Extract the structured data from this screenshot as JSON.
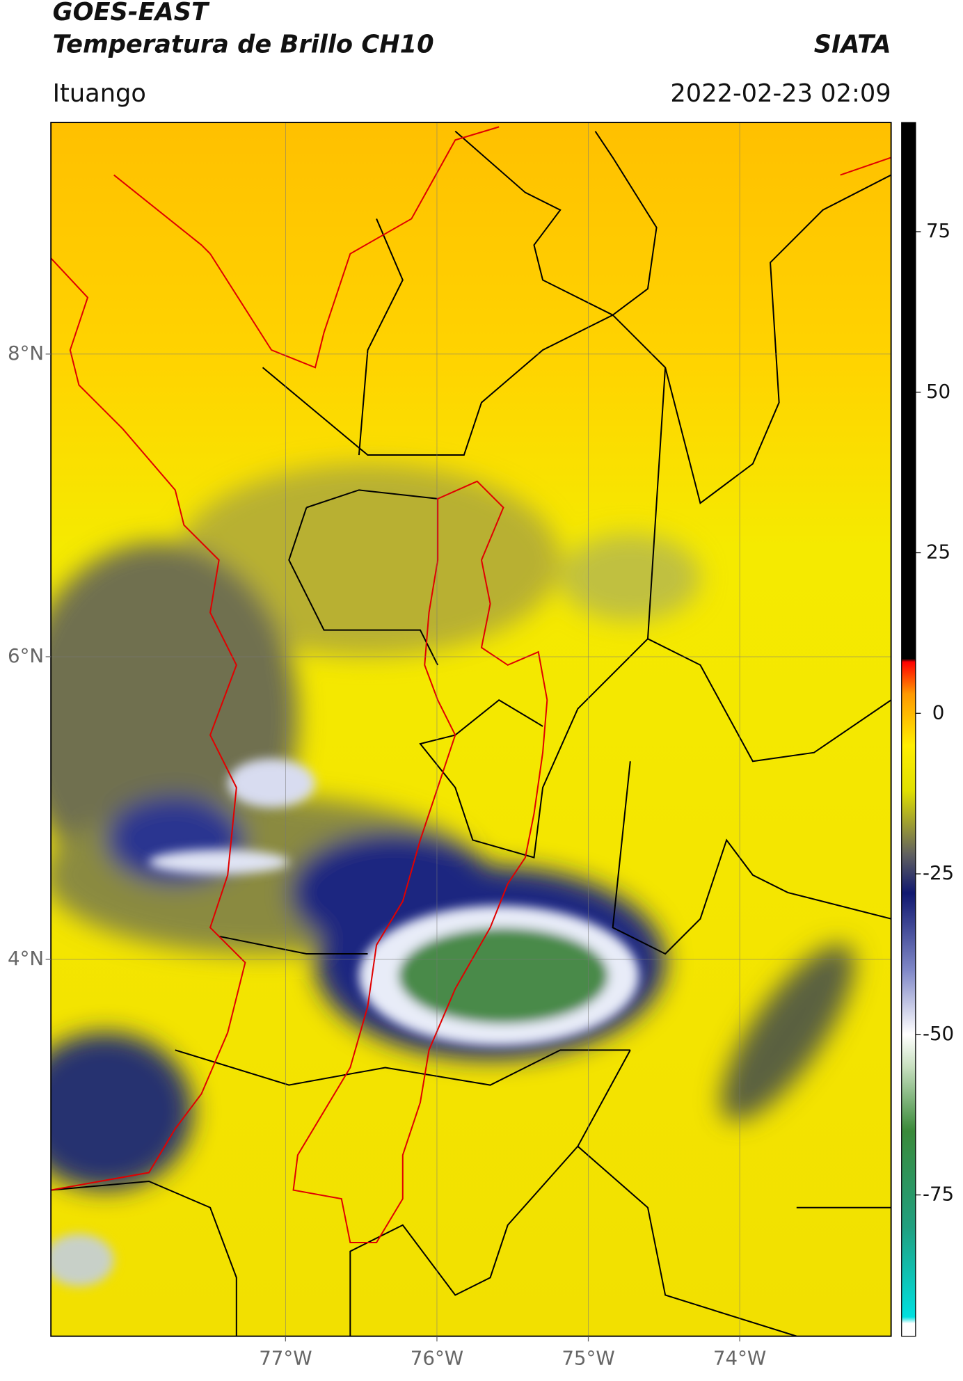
{
  "header": {
    "title": "GOES-EAST",
    "subtitle": "Temperatura de Brillo CH10",
    "brand": "SIATA",
    "location": "Ituango",
    "datetime": "2022-02-23 02:09"
  },
  "map": {
    "lonlim": [
      -78.55,
      -73.0
    ],
    "latlim": [
      1.51,
      9.53
    ],
    "lon_ticks": [
      {
        "value": -77,
        "label": "77°W"
      },
      {
        "value": -76,
        "label": "76°W"
      },
      {
        "value": -75,
        "label": "75°W"
      },
      {
        "value": -74,
        "label": "74°W"
      }
    ],
    "lat_ticks": [
      {
        "value": 8,
        "label": "8°N"
      },
      {
        "value": 6,
        "label": "6°N"
      },
      {
        "value": 4,
        "label": "4°N"
      }
    ],
    "grid": true
  },
  "colorbar": {
    "lim": [
      -97,
      92
    ],
    "ticks": [
      75,
      50,
      25,
      0,
      -25,
      -50,
      -75
    ],
    "stops": [
      {
        "value": -97,
        "color": "#ffffff"
      },
      {
        "value": -95,
        "color": "#ffffff"
      },
      {
        "value": -94,
        "color": "#00e0e0"
      },
      {
        "value": -80,
        "color": "#20a080"
      },
      {
        "value": -65,
        "color": "#3a8a3a"
      },
      {
        "value": -55,
        "color": "#c8e0c0"
      },
      {
        "value": -50,
        "color": "#ffffff"
      },
      {
        "value": -40,
        "color": "#8088c8"
      },
      {
        "value": -28,
        "color": "#101870"
      },
      {
        "value": -22,
        "color": "#606060"
      },
      {
        "value": -12,
        "color": "#e0e000"
      },
      {
        "value": -5,
        "color": "#ffee00"
      },
      {
        "value": 3,
        "color": "#ff9900"
      },
      {
        "value": 8,
        "color": "#ff0000"
      },
      {
        "value": 8.5,
        "color": "#000000"
      },
      {
        "value": 92,
        "color": "#000000"
      }
    ]
  }
}
